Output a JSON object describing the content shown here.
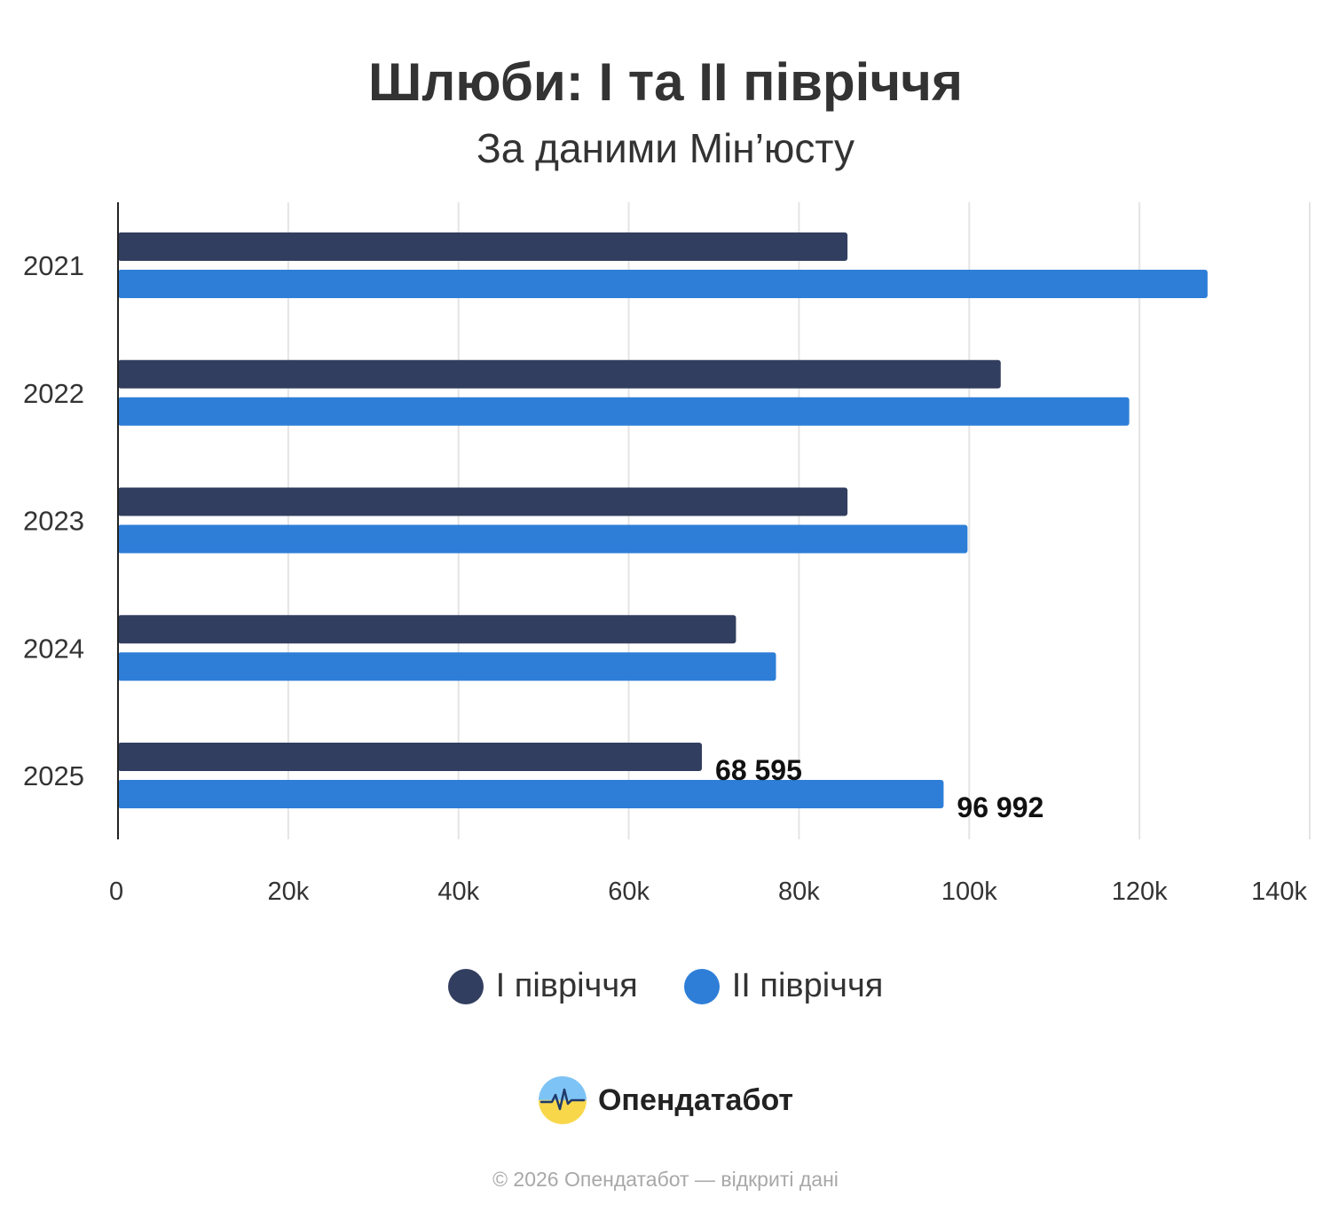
{
  "chart_data": {
    "type": "bar",
    "orientation": "horizontal",
    "title": "Шлюби: I та II півріччя",
    "subtitle": "За даними Мін’юсту",
    "categories": [
      "2021",
      "2022",
      "2023",
      "2024",
      "2025"
    ],
    "series": [
      {
        "name": "I півріччя",
        "color": "#323e5f",
        "values": [
          85700,
          103700,
          85700,
          72600,
          68595
        ]
      },
      {
        "name": "II півріччя",
        "color": "#2e7ed8",
        "values": [
          128000,
          118800,
          99800,
          77300,
          96992
        ]
      }
    ],
    "data_labels": [
      {
        "series": 0,
        "category": "2025",
        "text": "68 595"
      },
      {
        "series": 1,
        "category": "2025",
        "text": "96 992"
      }
    ],
    "x_ticks": [
      0,
      20000,
      40000,
      60000,
      80000,
      100000,
      120000,
      140000
    ],
    "x_tick_labels": [
      "0",
      "20k",
      "40k",
      "60k",
      "80k",
      "100k",
      "120k",
      "140k"
    ],
    "xlim": [
      0,
      140000
    ],
    "grid": "vertical",
    "legend_position": "bottom-center"
  },
  "brand": {
    "name": "Опендатабот",
    "logo_icon": "opendatabot-logo-icon"
  },
  "footer": {
    "text": "© 2026 Опендатабот — відкриті дані"
  }
}
